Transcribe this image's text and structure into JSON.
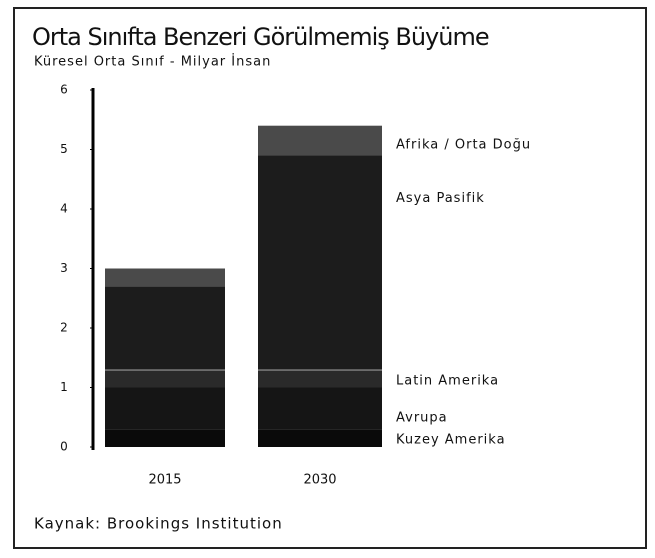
{
  "chart_data": {
    "type": "stacked_bar",
    "title": "Orta Sınıfta Benzeri Görülmemiş Büyüme",
    "subtitle": "Küresel Orta Sınıf - Milyar İnsan",
    "source": "Kaynak: Brookings Institution",
    "categories": [
      "2015",
      "2030"
    ],
    "series": [
      {
        "name": "Kuzey Amerika",
        "color": "#0a0a0a",
        "values": [
          0.3,
          0.3
        ]
      },
      {
        "name": "Avrupa",
        "color": "#151515",
        "values": [
          0.7,
          0.7
        ]
      },
      {
        "name": "Latin Amerika",
        "color": "#2a2a2a",
        "values": [
          0.3,
          0.3
        ]
      },
      {
        "name": "Asya Pasifik",
        "color": "#1c1c1c",
        "values": [
          1.4,
          3.6
        ]
      },
      {
        "name": "Afrika / Orta Doğu",
        "color": "#4a4a4a",
        "values": [
          0.3,
          0.5
        ]
      }
    ],
    "ylim": [
      0,
      6
    ],
    "yticks": [
      0,
      1,
      2,
      3,
      4,
      5,
      6
    ]
  }
}
